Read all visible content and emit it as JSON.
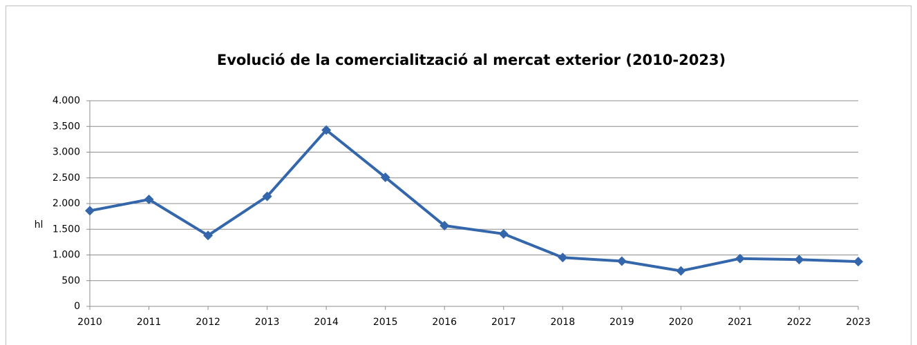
{
  "chart_data": {
    "type": "line",
    "title": "Evolució de la comercialització al mercat exterior (2010-2023)",
    "y_label": "hl",
    "categories": [
      "2010",
      "2011",
      "2012",
      "2013",
      "2014",
      "2015",
      "2016",
      "2017",
      "2018",
      "2019",
      "2020",
      "2021",
      "2022",
      "2023"
    ],
    "values": [
      1860,
      2080,
      1380,
      2140,
      3430,
      2510,
      1570,
      1410,
      950,
      880,
      690,
      930,
      910,
      870
    ],
    "color": "#3466ac",
    "ylim": [
      0,
      4000
    ],
    "yticks": [
      0,
      500,
      {
        "value": 1000,
        "label": "1.000"
      },
      {
        "value": 1500,
        "label": "1.500"
      },
      {
        "value": 2000,
        "label": "2.000"
      },
      {
        "value": 2500,
        "label": "2.500"
      },
      {
        "value": 3000,
        "label": "3.000"
      },
      {
        "value": 3500,
        "label": "3.500"
      },
      {
        "value": 4000,
        "label": "4.000"
      }
    ],
    "grid": true
  }
}
